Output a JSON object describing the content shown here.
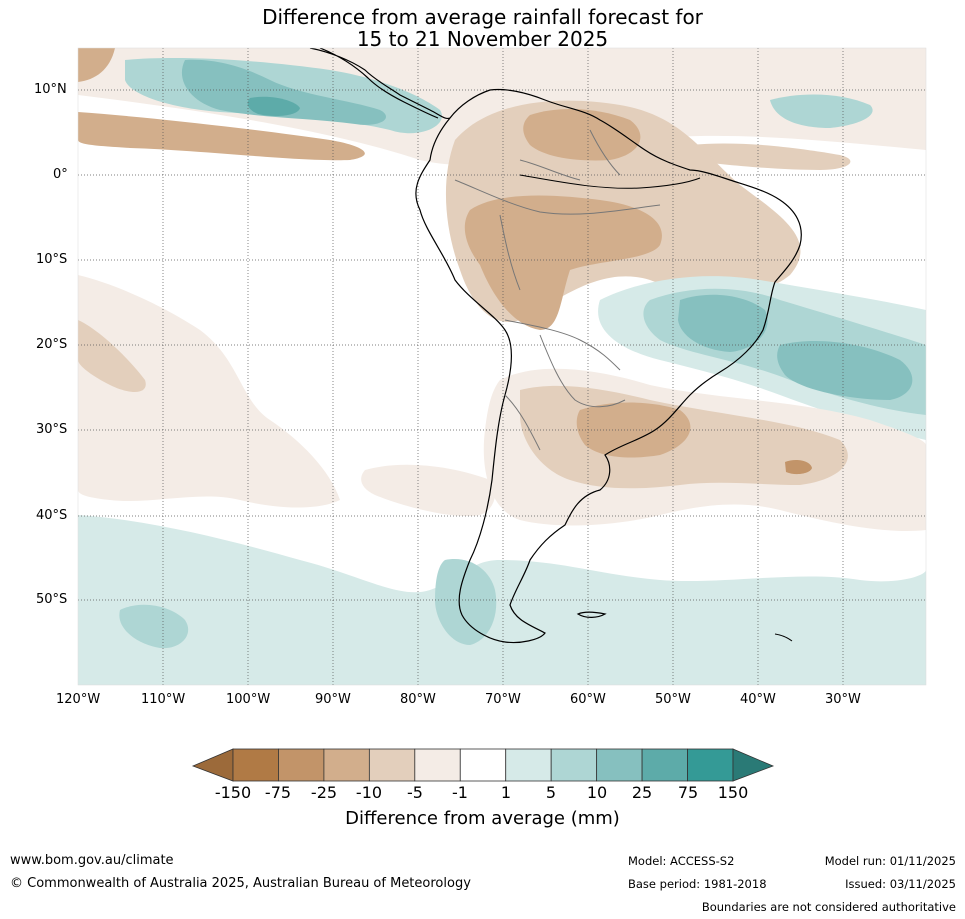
{
  "title": {
    "line1": "Difference from average rainfall forecast for",
    "line2": "15 to 21 November 2025"
  },
  "map": {
    "lat_labels": [
      "10°N",
      "0°",
      "10°S",
      "20°S",
      "30°S",
      "40°S",
      "50°S"
    ],
    "lon_labels": [
      "120°W",
      "110°W",
      "100°W",
      "90°W",
      "80°W",
      "70°W",
      "60°W",
      "50°W",
      "40°W",
      "30°W"
    ]
  },
  "colorbar": {
    "ticks": [
      "-150",
      "-75",
      "-25",
      "-10",
      "-5",
      "-1",
      "1",
      "5",
      "10",
      "25",
      "75",
      "150"
    ],
    "colors": [
      "#9c6a3a",
      "#b07a45",
      "#c29469",
      "#d2ae8c",
      "#e3cfbc",
      "#f4ece6",
      "#ffffff",
      "#d6eae8",
      "#aed6d4",
      "#86c0bf",
      "#5daba9",
      "#349a96",
      "#2a7a76"
    ],
    "label": "Difference from average (mm)"
  },
  "footer": {
    "website": "www.bom.gov.au/climate",
    "copyright": "© Commonwealth of Australia 2025, Australian Bureau of Meteorology",
    "model": "Model: ACCESS-S2",
    "base_period": "Base period: 1981-2018",
    "model_run": "Model run: 01/11/2025",
    "issued": "Issued: 03/11/2025",
    "disclaimer": "Boundaries are not considered authoritative"
  }
}
